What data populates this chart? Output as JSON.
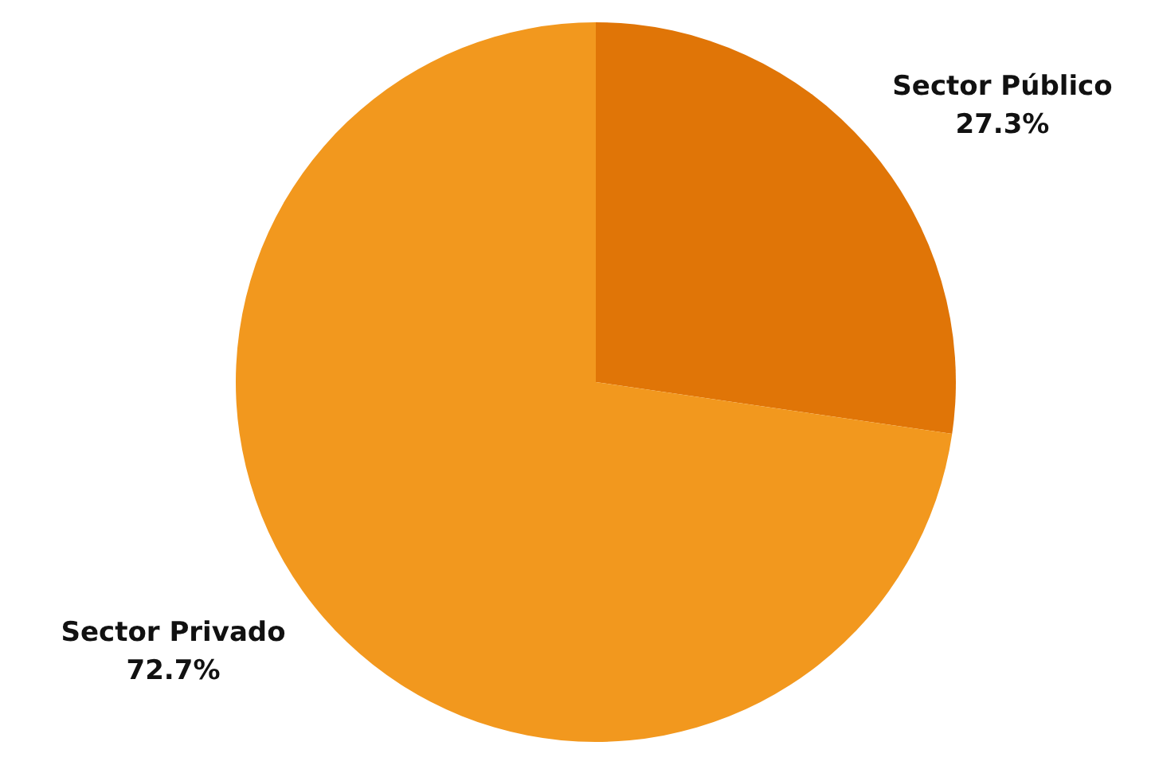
{
  "chart_data": {
    "type": "pie",
    "categories": [
      "Sector Público",
      "Sector Privado"
    ],
    "values": [
      27.3,
      72.7
    ],
    "value_labels": [
      "27.3%",
      "72.7%"
    ],
    "colors": [
      "#e07507",
      "#f2981e"
    ]
  }
}
